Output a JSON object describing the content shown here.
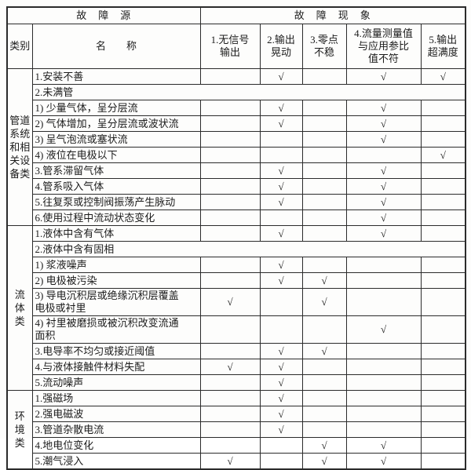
{
  "colors": {
    "border": "#2b2b2b",
    "text": "#1c1c1c",
    "background": "#fdfdfc"
  },
  "table": {
    "check_mark": "√",
    "header": {
      "source_title": "故　障　源",
      "phenomenon_title": "故　障　现　象",
      "category_label": "类别",
      "name_label": "名　　称",
      "columns": [
        "1.无信号\n输出",
        "2.输出\n晃动",
        "3.零点\n不稳",
        "4.流量测量值\n与应用参比\n值不符",
        "5.输出\n超满度"
      ]
    },
    "categories": [
      {
        "label": "管道\n系统\n和相\n关设\n备类",
        "rows": [
          {
            "name": "1.安装不善",
            "checks": [
              0,
              1,
              0,
              1,
              1
            ]
          },
          {
            "name": "2.未满管",
            "merged": true
          },
          {
            "name": "1) 少量气体，呈分层流",
            "checks": [
              0,
              1,
              0,
              1,
              0
            ]
          },
          {
            "name": "2) 气体增加，呈分层流或波状流",
            "checks": [
              0,
              1,
              0,
              1,
              0
            ]
          },
          {
            "name": "3) 呈气泡流或塞状流",
            "checks": [
              0,
              0,
              0,
              1,
              0
            ]
          },
          {
            "name": "4) 液位在电极以下",
            "checks": [
              0,
              0,
              0,
              0,
              1
            ]
          },
          {
            "name": "3.管系滞留气体",
            "checks": [
              0,
              1,
              0,
              1,
              0
            ]
          },
          {
            "name": "4.管系吸入气体",
            "checks": [
              0,
              1,
              0,
              1,
              0
            ]
          },
          {
            "name": "5.往复泵或控制阀振荡产生脉动",
            "checks": [
              0,
              1,
              0,
              1,
              0
            ]
          },
          {
            "name": "6.使用过程中流动状态变化",
            "checks": [
              0,
              0,
              0,
              1,
              0
            ]
          }
        ]
      },
      {
        "label": "流\n体\n类",
        "rows": [
          {
            "name": "1.液体中含有气体",
            "checks": [
              0,
              1,
              0,
              1,
              0
            ]
          },
          {
            "name": "2.液体中含有固相",
            "merged": true
          },
          {
            "name": "1) 浆液噪声",
            "checks": [
              0,
              1,
              0,
              0,
              0
            ]
          },
          {
            "name": "2) 电极被污染",
            "checks": [
              0,
              1,
              1,
              0,
              0
            ]
          },
          {
            "name": "3) 导电沉积层或绝缘沉积层覆盖\n电极或衬里",
            "checks": [
              1,
              0,
              1,
              0,
              0
            ]
          },
          {
            "name": "4) 衬里被磨损或被沉积改变流通\n面积",
            "checks": [
              0,
              0,
              0,
              1,
              0
            ]
          },
          {
            "name": "3.电导率不均匀或接近阈值",
            "checks": [
              0,
              1,
              1,
              0,
              0
            ]
          },
          {
            "name": "4.与液体接触件材料失配",
            "checks": [
              1,
              1,
              0,
              0,
              0
            ]
          },
          {
            "name": "5.流动噪声",
            "checks": [
              0,
              1,
              0,
              0,
              0
            ]
          }
        ]
      },
      {
        "label": "环\n境\n类",
        "rows": [
          {
            "name": "1.强磁场",
            "checks": [
              0,
              1,
              0,
              0,
              0
            ]
          },
          {
            "name": "2.强电磁波",
            "checks": [
              0,
              1,
              0,
              0,
              0
            ]
          },
          {
            "name": "3.管道杂散电流",
            "checks": [
              0,
              1,
              0,
              0,
              0
            ]
          },
          {
            "name": "4.地电位变化",
            "checks": [
              0,
              0,
              1,
              1,
              0
            ]
          },
          {
            "name": "5.潮气浸入",
            "checks": [
              1,
              0,
              1,
              1,
              0
            ]
          }
        ]
      }
    ]
  }
}
